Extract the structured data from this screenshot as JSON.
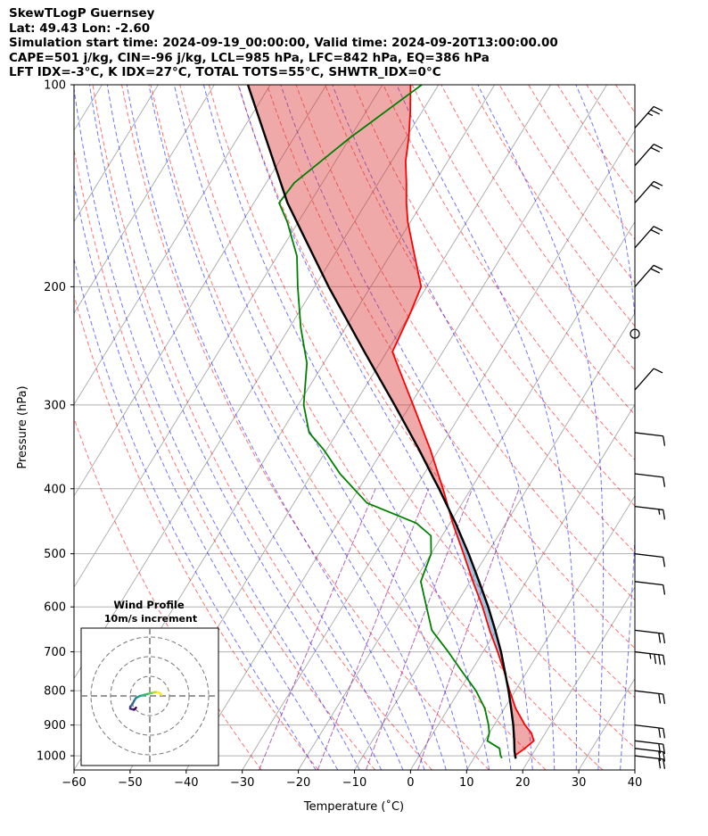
{
  "header": {
    "line1": "SkewTLogP Guernsey",
    "line2": "Lat: 49.43   Lon: -2.60",
    "line3": "Simulation start time: 2024-09-19_00:00:00, Valid time: 2024-09-20T13:00:00.00",
    "line4": "CAPE=501 j/kg, CIN=-96 j/kg, LCL=985 hPa, LFC=842 hPa, EQ=386 hPa",
    "line5": "LFT IDX=-3°C, K IDX=27°C, TOTAL TOTS=55°C, SHWTR_IDX=0°C"
  },
  "colors": {
    "temperature": "#ff0000",
    "dewpoint": "#008000",
    "parcel": "#000000",
    "cape_fill": "#1f77b4",
    "cin_fill": "#d62728",
    "dry_adiabat": "#ff0000",
    "moist_adiabat": "#0000ff",
    "mixing_ratio": "#800080",
    "isotherm": "#888888"
  },
  "chart_data": {
    "type": "line",
    "xlabel": "Temperature (˚C)",
    "ylabel": "Pressure (hPa)",
    "xlim": [
      -60,
      40
    ],
    "ylim": [
      1050,
      100
    ],
    "yscale": "log",
    "grid": true,
    "x_ticks": [
      -60,
      -50,
      -40,
      -30,
      -20,
      -10,
      0,
      10,
      20,
      30,
      40
    ],
    "y_ticks": [
      100,
      200,
      300,
      400,
      500,
      600,
      700,
      800,
      900,
      1000
    ],
    "temperature_profile": [
      [
        1008,
        17.5
      ],
      [
        1000,
        17.0
      ],
      [
        975,
        18.0
      ],
      [
        950,
        18.8
      ],
      [
        925,
        17.5
      ],
      [
        900,
        15.5
      ],
      [
        850,
        12.0
      ],
      [
        800,
        9.0
      ],
      [
        750,
        6.0
      ],
      [
        700,
        2.6
      ],
      [
        650,
        -1.2
      ],
      [
        600,
        -5.0
      ],
      [
        550,
        -9.5
      ],
      [
        500,
        -14.2
      ],
      [
        450,
        -19.5
      ],
      [
        400,
        -25.0
      ],
      [
        350,
        -31.5
      ],
      [
        300,
        -39.5
      ],
      [
        270,
        -45.0
      ],
      [
        250,
        -49.0
      ],
      [
        220,
        -50.0
      ],
      [
        200,
        -51.0
      ],
      [
        180,
        -55.5
      ],
      [
        160,
        -60.5
      ],
      [
        150,
        -62.8
      ],
      [
        140,
        -65.0
      ],
      [
        130,
        -67.5
      ],
      [
        120,
        -69.5
      ],
      [
        110,
        -72.0
      ],
      [
        100,
        -75.0
      ]
    ],
    "dewpoint_profile": [
      [
        1008,
        15.0
      ],
      [
        1000,
        14.5
      ],
      [
        975,
        13.5
      ],
      [
        950,
        10.5
      ],
      [
        925,
        10.0
      ],
      [
        900,
        9.0
      ],
      [
        850,
        6.5
      ],
      [
        800,
        3.0
      ],
      [
        750,
        -1.5
      ],
      [
        700,
        -6.2
      ],
      [
        650,
        -11.5
      ],
      [
        600,
        -15.0
      ],
      [
        550,
        -18.8
      ],
      [
        500,
        -20.0
      ],
      [
        470,
        -22.0
      ],
      [
        450,
        -26.0
      ],
      [
        420,
        -37.0
      ],
      [
        380,
        -45.0
      ],
      [
        350,
        -50.5
      ],
      [
        330,
        -55.0
      ],
      [
        300,
        -59.0
      ],
      [
        260,
        -63.0
      ],
      [
        230,
        -68.0
      ],
      [
        200,
        -73.0
      ],
      [
        180,
        -76.5
      ],
      [
        160,
        -82.0
      ],
      [
        150,
        -85.5
      ],
      [
        140,
        -85.0
      ],
      [
        120,
        -80.0
      ],
      [
        100,
        -73.0
      ]
    ],
    "parcel_profile": [
      [
        1010,
        17.5
      ],
      [
        985,
        16.5
      ],
      [
        950,
        15.3
      ],
      [
        900,
        13.4
      ],
      [
        850,
        11.2
      ],
      [
        800,
        8.8
      ],
      [
        750,
        6.1
      ],
      [
        700,
        3.2
      ],
      [
        650,
        -0.2
      ],
      [
        600,
        -4.0
      ],
      [
        550,
        -8.4
      ],
      [
        500,
        -13.3
      ],
      [
        450,
        -19.0
      ],
      [
        400,
        -25.7
      ],
      [
        386,
        -27.8
      ],
      [
        350,
        -33.5
      ],
      [
        300,
        -42.8
      ],
      [
        250,
        -54.0
      ],
      [
        200,
        -67.5
      ],
      [
        150,
        -84.0
      ],
      [
        100,
        -104.0
      ]
    ],
    "wind_barbs": [
      {
        "p": 1000,
        "speed_kt": 20
      },
      {
        "p": 975,
        "speed_kt": 20
      },
      {
        "p": 950,
        "speed_kt": 20
      },
      {
        "p": 900,
        "speed_kt": 20
      },
      {
        "p": 800,
        "speed_kt": 20
      },
      {
        "p": 700,
        "speed_kt": 25
      },
      {
        "p": 650,
        "speed_kt": 20
      },
      {
        "p": 550,
        "speed_kt": 10
      },
      {
        "p": 500,
        "speed_kt": 10
      },
      {
        "p": 425,
        "speed_kt": 5
      },
      {
        "p": 380,
        "speed_kt": 10
      },
      {
        "p": 330,
        "speed_kt": 10
      },
      {
        "p": 285,
        "speed_kt": 10
      },
      {
        "p": 235,
        "speed_kt": 0
      },
      {
        "p": 200,
        "speed_kt": 20
      },
      {
        "p": 175,
        "speed_kt": 20
      },
      {
        "p": 150,
        "speed_kt": 20
      },
      {
        "p": 132,
        "speed_kt": 20
      },
      {
        "p": 116,
        "speed_kt": 15
      }
    ],
    "inset": {
      "title_line1": "Wind Profile",
      "title_line2": "10m/s increment",
      "hodograph": [
        [
          6,
          1
        ],
        [
          5,
          3
        ],
        [
          3,
          4
        ],
        [
          1,
          3
        ],
        [
          -1,
          2
        ],
        [
          -3,
          1
        ],
        [
          -5,
          0
        ],
        [
          -7,
          -2
        ],
        [
          -8,
          -5
        ],
        [
          -9,
          -9
        ],
        [
          -10,
          -11
        ],
        [
          -10,
          -13
        ],
        [
          -8,
          -14
        ],
        [
          -7,
          -12
        ]
      ]
    }
  }
}
